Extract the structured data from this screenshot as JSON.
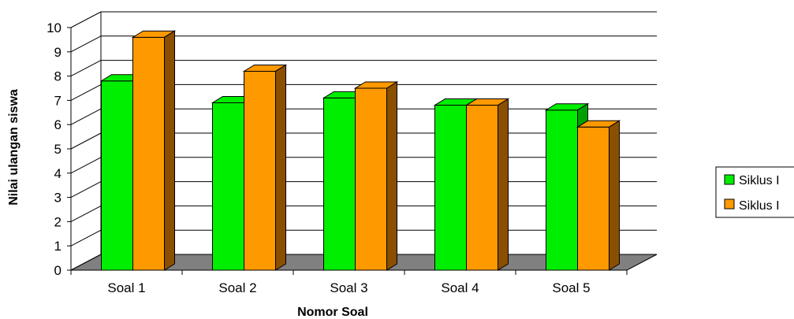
{
  "chart_data": {
    "type": "bar",
    "title": "",
    "xlabel": "Nomor Soal",
    "ylabel": "Nilai ulangan siswa",
    "categories": [
      "Soal 1",
      "Soal 2",
      "Soal 3",
      "Soal 4",
      "Soal 5"
    ],
    "series": [
      {
        "name": "Siklus I",
        "values": [
          7.8,
          6.9,
          7.1,
          6.8,
          6.6
        ],
        "color": "#00ee00",
        "dark": "#00a000"
      },
      {
        "name": "Siklus I",
        "values": [
          9.6,
          8.2,
          7.5,
          6.8,
          5.9
        ],
        "color": "#ff9900",
        "dark": "#8a4f00"
      }
    ],
    "ylim": [
      0,
      10
    ],
    "yticks": [
      "0",
      "1",
      "2",
      "3",
      "4",
      "5",
      "6",
      "7",
      "8",
      "9",
      "10"
    ],
    "grid": true,
    "three_d": true,
    "legend_position": "right",
    "colors": {
      "floor": "#808080",
      "grid": "#000000"
    }
  }
}
